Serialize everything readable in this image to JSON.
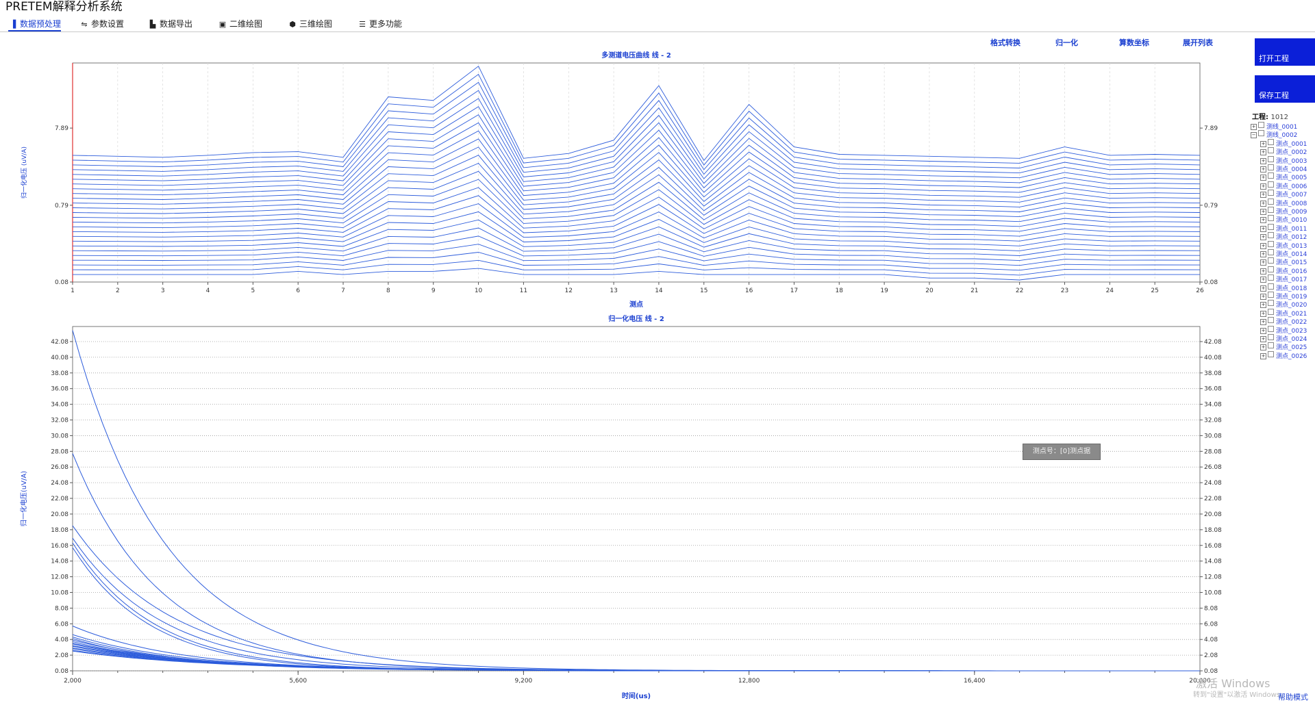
{
  "window": {
    "title": "PRETEM解释分析系统"
  },
  "menu": [
    {
      "icon": "bar-chart-icon",
      "glyph": "▐",
      "label": "数据预处理",
      "active": true
    },
    {
      "icon": "sliders-icon",
      "glyph": "⇋",
      "label": "参数设置",
      "active": false
    },
    {
      "icon": "chart-export-icon",
      "glyph": "▙",
      "label": "数据导出",
      "active": false
    },
    {
      "icon": "save-icon",
      "glyph": "▣",
      "label": "二维绘图",
      "active": false
    },
    {
      "icon": "cube-icon",
      "glyph": "⬢",
      "label": "三维绘图",
      "active": false
    },
    {
      "icon": "menu-icon",
      "glyph": "☰",
      "label": "更多功能",
      "active": false
    }
  ],
  "toolbar": [
    {
      "label": "格式转换"
    },
    {
      "label": "归一化"
    },
    {
      "label": "算数坐标"
    },
    {
      "label": "展开列表"
    }
  ],
  "side_buttons": {
    "open_project": "打开工程",
    "save_project": "保存工程"
  },
  "project": {
    "label": "工程:",
    "value": "1012"
  },
  "tree": {
    "lines": [
      {
        "label": "测线_0001",
        "expanded": false
      },
      {
        "label": "测线_0002",
        "expanded": true
      }
    ],
    "points": [
      "测点_0001",
      "测点_0002",
      "测点_0003",
      "测点_0004",
      "测点_0005",
      "测点_0006",
      "测点_0007",
      "测点_0008",
      "测点_0009",
      "测点_0010",
      "测点_0011",
      "测点_0012",
      "测点_0013",
      "测点_0014",
      "测点_0015",
      "测点_0016",
      "测点_0017",
      "测点_0018",
      "测点_0019",
      "测点_0020",
      "测点_0021",
      "测点_0022",
      "测点_0023",
      "测点_0024",
      "测点_0025",
      "测点_0026"
    ]
  },
  "tooltip": "测点号：[0]测点据",
  "watermark": {
    "line1": "激活 Windows",
    "line2": "转到\"设置\"以激活 Windows。"
  },
  "status_link": "帮助模式",
  "colors": {
    "accent": "#1a3fd0",
    "curve": "#2b5bdb",
    "button": "#0b1fd8"
  },
  "chart_data": [
    {
      "type": "line",
      "title": "多测道电压曲线 线 - 2",
      "xlabel": "测点",
      "ylabel": "归一化电压 (uV/A)",
      "y_scale": "log",
      "x": [
        1,
        2,
        3,
        4,
        5,
        6,
        7,
        8,
        9,
        10,
        11,
        12,
        13,
        14,
        15,
        16,
        17,
        18,
        19,
        20,
        21,
        22,
        23,
        24,
        25,
        26
      ],
      "y_ticks": [
        "7.89",
        "0.79",
        "0.08"
      ],
      "x_ticks": [
        "1",
        "2",
        "3",
        "4",
        "5",
        "6",
        "7",
        "8",
        "9",
        "10",
        "11",
        "12",
        "13",
        "14",
        "15",
        "16",
        "17",
        "18",
        "19",
        "20",
        "21",
        "22",
        "23",
        "24",
        "25",
        "26"
      ],
      "ylim": [
        0.08,
        55
      ],
      "channel_count": 26,
      "series_base": [
        3.5,
        3.4,
        3.3,
        3.5,
        3.8,
        3.9,
        3.3,
        20,
        18,
        50,
        3.2,
        3.7,
        5.5,
        28,
        3.0,
        16,
        4.5,
        3.6,
        3.5,
        3.4,
        3.3,
        3.2,
        4.5,
        3.5,
        3.6,
        3.5
      ],
      "series_min": [
        0.1,
        0.1,
        0.1,
        0.1,
        0.1,
        0.11,
        0.1,
        0.11,
        0.11,
        0.12,
        0.1,
        0.1,
        0.1,
        0.11,
        0.1,
        0.1,
        0.1,
        0.1,
        0.1,
        0.09,
        0.09,
        0.085,
        0.1,
        0.1,
        0.1,
        0.1
      ],
      "grid": true
    },
    {
      "type": "line",
      "title": "归一化电压 线 - 2",
      "xlabel": "时间(us)",
      "ylabel": "归一化电压(uV/A)",
      "x_ticks": [
        "2,000",
        "5,600",
        "9,200",
        "12,800",
        "16,400",
        "20,000"
      ],
      "xlim": [
        2000,
        20000
      ],
      "ylim": [
        0.08,
        44
      ],
      "y_ticks": [
        "0.08",
        "2.08",
        "4.08",
        "6.08",
        "8.08",
        "10.08",
        "12.08",
        "14.08",
        "16.08",
        "18.08",
        "20.08",
        "22.08",
        "24.08",
        "26.08",
        "28.08",
        "30.08",
        "32.08",
        "34.08",
        "36.08",
        "38.08",
        "40.08",
        "42.08"
      ],
      "series": [
        {
          "start": 43.5,
          "decay": 1500
        },
        {
          "start": 27.8,
          "decay": 1400
        },
        {
          "start": 18.6,
          "decay": 1600
        },
        {
          "start": 17.0,
          "decay": 1450
        },
        {
          "start": 16.4,
          "decay": 1300
        },
        {
          "start": 15.8,
          "decay": 1250
        },
        {
          "start": 5.8,
          "decay": 1700
        },
        {
          "start": 4.7,
          "decay": 1800
        },
        {
          "start": 4.4,
          "decay": 1750
        },
        {
          "start": 4.2,
          "decay": 1650
        },
        {
          "start": 4.0,
          "decay": 1900
        },
        {
          "start": 3.8,
          "decay": 1850
        },
        {
          "start": 3.6,
          "decay": 2000
        },
        {
          "start": 3.5,
          "decay": 1950
        },
        {
          "start": 3.3,
          "decay": 2100
        },
        {
          "start": 3.2,
          "decay": 2050
        },
        {
          "start": 3.0,
          "decay": 2200
        },
        {
          "start": 2.9,
          "decay": 2150
        },
        {
          "start": 2.7,
          "decay": 2300
        },
        {
          "start": 2.6,
          "decay": 2250
        }
      ],
      "grid": true
    }
  ]
}
